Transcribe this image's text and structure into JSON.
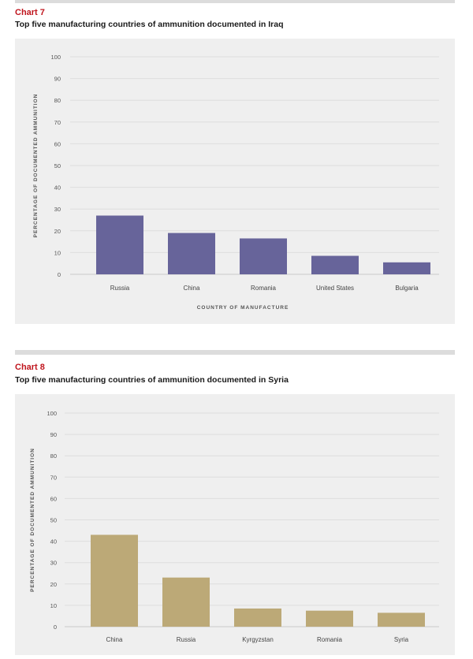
{
  "charts": [
    {
      "label": "Chart 7",
      "title": "Top five manufacturing countries of ammunition documented in Iraq",
      "color": "#67649a"
    },
    {
      "label": "Chart 8",
      "title": "Top five manufacturing countries of ammunition documented in Syria",
      "color": "#bca977"
    }
  ],
  "chart_data": [
    {
      "type": "bar",
      "categories": [
        "Russia",
        "China",
        "Romania",
        "United States",
        "Bulgaria"
      ],
      "values": [
        27,
        19,
        16.5,
        8.5,
        5.5
      ],
      "title": "Top five manufacturing countries of ammunition documented in Iraq",
      "xlabel": "COUNTRY OF MANUFACTURE",
      "ylabel": "PERCENTAGE OF DOCUMENTED AMMUNITION",
      "ylim": [
        0,
        100
      ],
      "yticks": [
        0,
        10,
        20,
        30,
        40,
        50,
        60,
        70,
        80,
        90,
        100
      ],
      "grid": true
    },
    {
      "type": "bar",
      "categories": [
        "China",
        "Russia",
        "Kyrgyzstan",
        "Romania",
        "Syria"
      ],
      "values": [
        43,
        23,
        8.5,
        7.5,
        6.5
      ],
      "title": "Top five manufacturing countries of ammunition documented in Syria",
      "xlabel": "",
      "ylabel": "PERCENTAGE OF DOCUMENTED AMMUNITION",
      "ylim": [
        0,
        100
      ],
      "yticks": [
        0,
        10,
        20,
        30,
        40,
        50,
        60,
        70,
        80,
        90,
        100
      ],
      "grid": true
    }
  ]
}
